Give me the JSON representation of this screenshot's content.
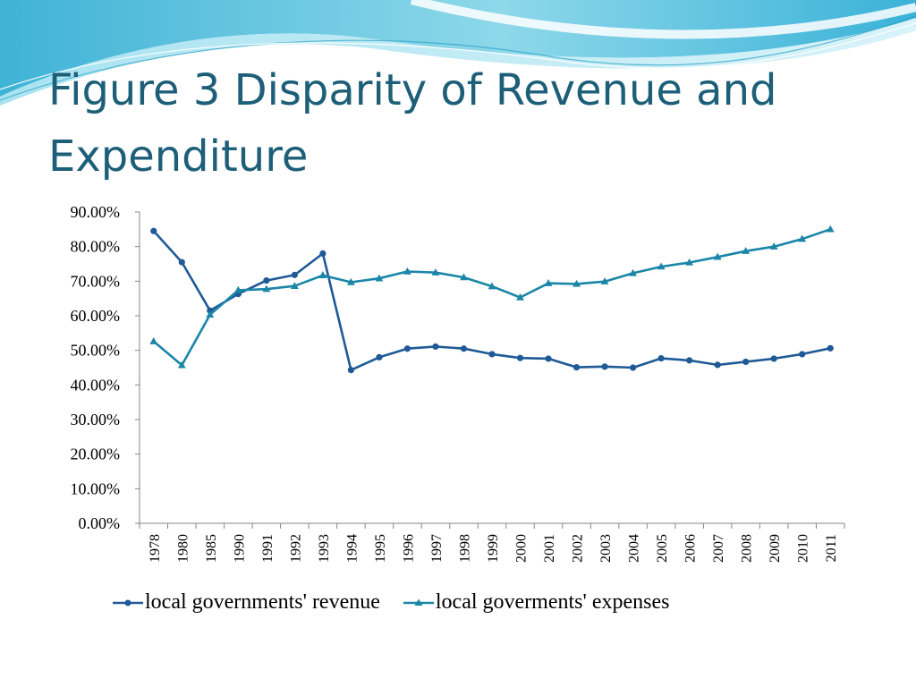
{
  "slide": {
    "title": "Figure 3 Disparity of Revenue and Expenditure"
  },
  "chart_data": {
    "type": "line",
    "title": "",
    "xlabel": "",
    "ylabel": "",
    "ylim": [
      0,
      90
    ],
    "y_tick_labels": [
      "0.00%",
      "10.00%",
      "20.00%",
      "30.00%",
      "40.00%",
      "50.00%",
      "60.00%",
      "70.00%",
      "80.00%",
      "90.00%"
    ],
    "grid": false,
    "legend_position": "bottom",
    "categories": [
      "1978",
      "1980",
      "1985",
      "1990",
      "1991",
      "1992",
      "1993",
      "1994",
      "1995",
      "1996",
      "1997",
      "1998",
      "1999",
      "2000",
      "2001",
      "2002",
      "2003",
      "2004",
      "2005",
      "2006",
      "2007",
      "2008",
      "2009",
      "2010",
      "2011"
    ],
    "series": [
      {
        "name": "local governments' revenue",
        "marker": "circle",
        "color": "#1f5a96",
        "values": [
          84.5,
          75.5,
          61.5,
          66.3,
          70.2,
          71.8,
          78.0,
          44.3,
          48.0,
          50.5,
          51.1,
          50.5,
          48.9,
          47.8,
          47.6,
          45.1,
          45.3,
          45.0,
          47.7,
          47.1,
          45.8,
          46.7,
          47.6,
          48.9,
          50.6
        ]
      },
      {
        "name": "local goverments' expenses",
        "marker": "triangle",
        "color": "#1a86a8",
        "values": [
          52.6,
          45.7,
          60.3,
          67.4,
          67.7,
          68.6,
          71.7,
          69.7,
          70.8,
          72.8,
          72.5,
          71.1,
          68.5,
          65.3,
          69.4,
          69.2,
          69.9,
          72.3,
          74.2,
          75.4,
          77.0,
          78.7,
          80.0,
          82.2,
          85.0
        ]
      }
    ]
  }
}
